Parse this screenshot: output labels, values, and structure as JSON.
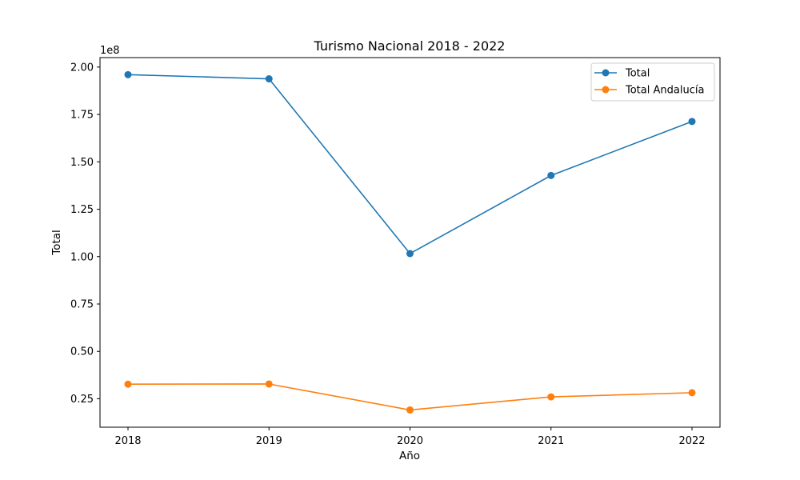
{
  "chart_data": {
    "type": "line",
    "title": "Turismo Nacional 2018 - 2022",
    "xlabel": "Año",
    "ylabel": "Total",
    "y_offset_label": "1e8",
    "y_scale": 100000000,
    "categories": [
      "2018",
      "2019",
      "2020",
      "2021",
      "2022"
    ],
    "ylim": [
      10000000,
      205000000
    ],
    "yticks": [
      {
        "value": 25000000,
        "label": "0.25"
      },
      {
        "value": 50000000,
        "label": "0.50"
      },
      {
        "value": 75000000,
        "label": "0.75"
      },
      {
        "value": 100000000,
        "label": "1.00"
      },
      {
        "value": 125000000,
        "label": "1.25"
      },
      {
        "value": 150000000,
        "label": "1.50"
      },
      {
        "value": 175000000,
        "label": "1.75"
      },
      {
        "value": 200000000,
        "label": "2.00"
      }
    ],
    "grid": false,
    "legend_position": "top-right",
    "series": [
      {
        "name": "Total",
        "color": "#1f77b4",
        "values": [
          196000000,
          193800000,
          101600000,
          142800000,
          171300000
        ]
      },
      {
        "name": "Total Andalucía",
        "color": "#ff7f0e",
        "values": [
          32700000,
          32800000,
          19100000,
          26000000,
          28200000
        ]
      }
    ]
  }
}
